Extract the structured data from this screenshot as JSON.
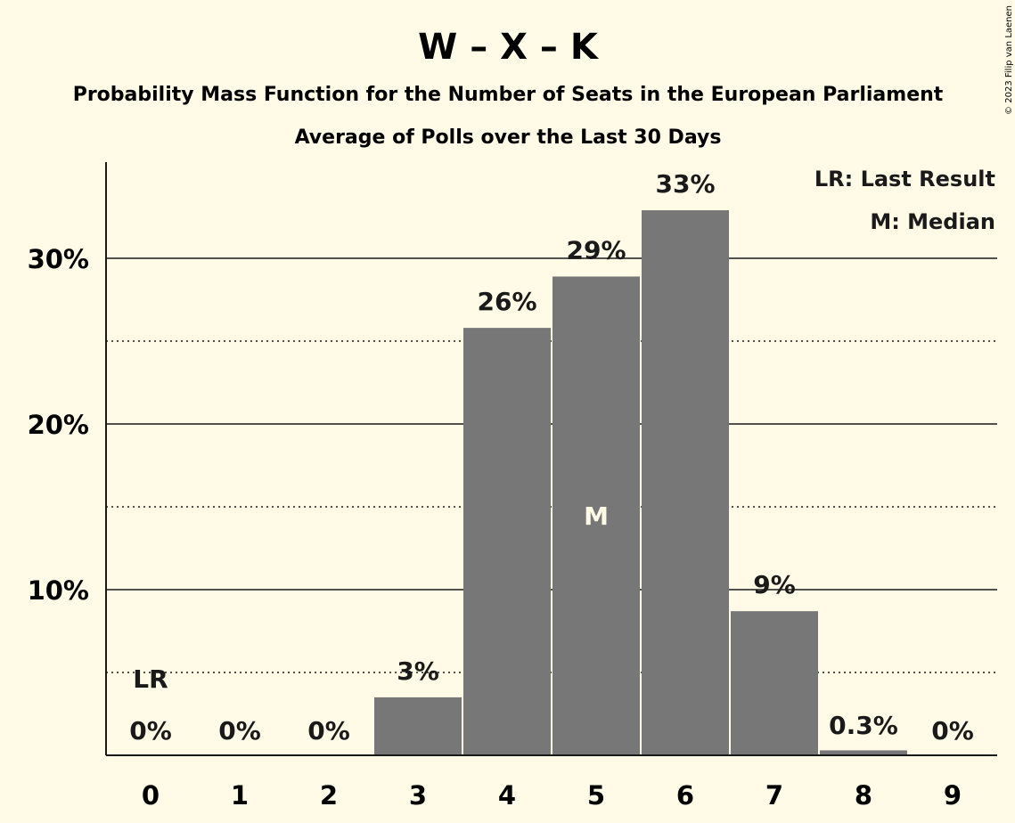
{
  "chart_data": {
    "type": "bar",
    "title": "W – X – K",
    "subtitle": "Probability Mass Function for the Number of Seats in the European Parliament",
    "subtitle2": "Average of Polls over the Last 30 Days",
    "copyright": "© 2023 Filip van Laenen",
    "categories": [
      "0",
      "1",
      "2",
      "3",
      "4",
      "5",
      "6",
      "7",
      "8",
      "9"
    ],
    "values": [
      0,
      0,
      0,
      3.5,
      25.8,
      28.9,
      32.9,
      8.7,
      0.3,
      0
    ],
    "value_labels": [
      "0%",
      "0%",
      "0%",
      "3%",
      "26%",
      "29%",
      "33%",
      "9%",
      "0.3%",
      "0%"
    ],
    "y_ticks": [
      {
        "value": 10,
        "label": "10%"
      },
      {
        "value": 20,
        "label": "20%"
      },
      {
        "value": 30,
        "label": "30%"
      }
    ],
    "dotted_gridlines": [
      5,
      15,
      25
    ],
    "ylim": [
      0,
      35
    ],
    "last_result": {
      "index": 0,
      "label": "LR"
    },
    "median": {
      "index": 5,
      "label": "M"
    },
    "legend": [
      "LR: Last Result",
      "M: Median"
    ],
    "colors": {
      "background": "#fffbe6",
      "bar": "#777777",
      "text": "#1a1a1a",
      "median_text": "#fffbe6"
    }
  }
}
